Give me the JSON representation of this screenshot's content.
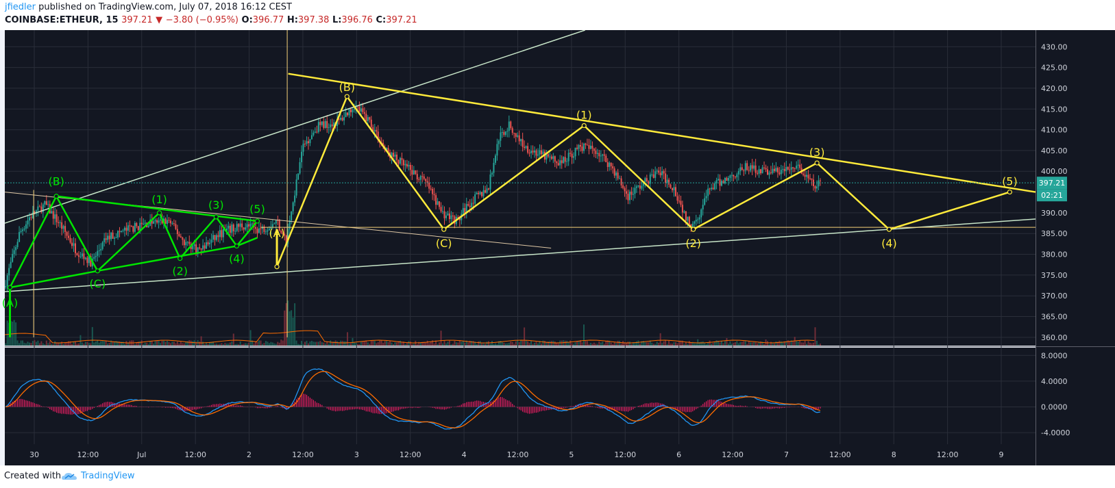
{
  "header": {
    "user": "jfiedler",
    "published_text": "published on TradingView.com, July 07, 2018 16:12 CEST",
    "symbol": "COINBASE:ETHEUR, 15",
    "last": "397.21",
    "change": "−3.80 (−0.95%)",
    "o_label": "O:",
    "o_value": "396.77",
    "h_label": "H:",
    "h_value": "397.38",
    "l_label": "L:",
    "l_value": "396.76",
    "c_label": "C:",
    "c_value": "397.21"
  },
  "footer": {
    "created_with": "Created with",
    "brand": "TradingView"
  },
  "colors": {
    "background": "#131722",
    "grid": "#2a2e39",
    "up_candle": "#26a69a",
    "down_candle": "#ef5350",
    "green_wave": "#00e600",
    "yellow_wave": "#ffeb3b",
    "trendline": "#c8e6c9",
    "macd_line": "#2196f3",
    "signal_line": "#ff6d00",
    "histogram": "#e91e63"
  },
  "chart_data": {
    "type": "candlestick",
    "symbol": "COINBASE:ETHEUR",
    "interval": "15",
    "x_ticks": [
      "30",
      "12:00",
      "Jul",
      "12:00",
      "2",
      "12:00",
      "3",
      "12:00",
      "4",
      "12:00",
      "5",
      "12:00",
      "6",
      "12:00",
      "7",
      "12:00",
      "8",
      "12:00",
      "9"
    ],
    "y_ticks": [
      "430.00",
      "425.00",
      "420.00",
      "415.00",
      "410.00",
      "405.00",
      "400.00",
      "395.00",
      "390.00",
      "385.00",
      "380.00",
      "375.00",
      "370.00",
      "365.00",
      "360.00"
    ],
    "ylim": [
      358,
      434
    ],
    "last_price_label": "397.21",
    "countdown_label": "02:21",
    "price_path": [
      [
        0,
        372
      ],
      [
        1.5,
        385
      ],
      [
        2.5,
        389
      ],
      [
        4,
        392
      ],
      [
        5.5,
        387
      ],
      [
        7,
        381
      ],
      [
        8.5,
        378
      ],
      [
        10,
        384
      ],
      [
        12,
        386
      ],
      [
        14,
        387.5
      ],
      [
        16,
        388
      ],
      [
        17.5,
        383
      ],
      [
        19,
        381
      ],
      [
        21,
        385
      ],
      [
        23,
        387
      ],
      [
        25,
        386
      ],
      [
        26.5,
        388
      ],
      [
        27.4,
        383
      ],
      [
        28.2,
        395
      ],
      [
        29,
        406
      ],
      [
        30.5,
        411
      ],
      [
        32.5,
        412
      ],
      [
        34,
        416
      ],
      [
        35.5,
        412
      ],
      [
        37,
        405
      ],
      [
        39,
        401
      ],
      [
        41,
        397
      ],
      [
        42.5,
        390
      ],
      [
        44,
        388
      ],
      [
        45,
        392
      ],
      [
        47,
        396
      ],
      [
        48,
        408
      ],
      [
        49,
        411
      ],
      [
        50.5,
        406
      ],
      [
        52,
        404
      ],
      [
        54,
        402
      ],
      [
        56,
        406
      ],
      [
        57.5,
        405
      ],
      [
        59,
        401
      ],
      [
        60.5,
        394
      ],
      [
        62,
        397
      ],
      [
        63.5,
        400
      ],
      [
        65,
        396
      ],
      [
        66.5,
        387
      ],
      [
        67.5,
        390
      ],
      [
        68.5,
        396
      ],
      [
        70,
        398
      ],
      [
        72,
        401
      ],
      [
        74,
        400
      ],
      [
        75.5,
        400
      ],
      [
        77,
        401
      ],
      [
        78,
        398
      ],
      [
        78.8,
        396
      ],
      [
        79.2,
        397.21
      ]
    ],
    "green_wave_points": [
      {
        "label": "(A)",
        "x": 0.5,
        "y": 372
      },
      {
        "label": "(B)",
        "x": 5,
        "y": 394
      },
      {
        "label": "(C)",
        "x": 9,
        "y": 376
      },
      {
        "label": "(1)",
        "x": 15,
        "y": 390
      },
      {
        "label": "(2)",
        "x": 17,
        "y": 379
      },
      {
        "label": "(3)",
        "x": 20.5,
        "y": 389
      },
      {
        "label": "(4)",
        "x": 22.5,
        "y": 382
      },
      {
        "label": "(5)",
        "x": 24.5,
        "y": 388
      }
    ],
    "yellow_wave_points": [
      {
        "label": "(A)",
        "x": 26.4,
        "y": 377
      },
      {
        "label": "(B)",
        "x": 33.2,
        "y": 418
      },
      {
        "label": "(C)",
        "x": 42.6,
        "y": 386
      },
      {
        "label": "(1)",
        "x": 56.2,
        "y": 411
      },
      {
        "label": "(2)",
        "x": 66.8,
        "y": 386
      },
      {
        "label": "(3)",
        "x": 78.8,
        "y": 402
      },
      {
        "label": "(4)",
        "x": 85.8,
        "y": 386
      },
      {
        "label": "(5)",
        "x": 97.5,
        "y": 395
      }
    ],
    "macd": {
      "ylim": [
        -5.8,
        9.2
      ],
      "y_ticks": [
        "8.0000",
        "4.0000",
        "0.0000",
        "-4.0000"
      ]
    }
  }
}
